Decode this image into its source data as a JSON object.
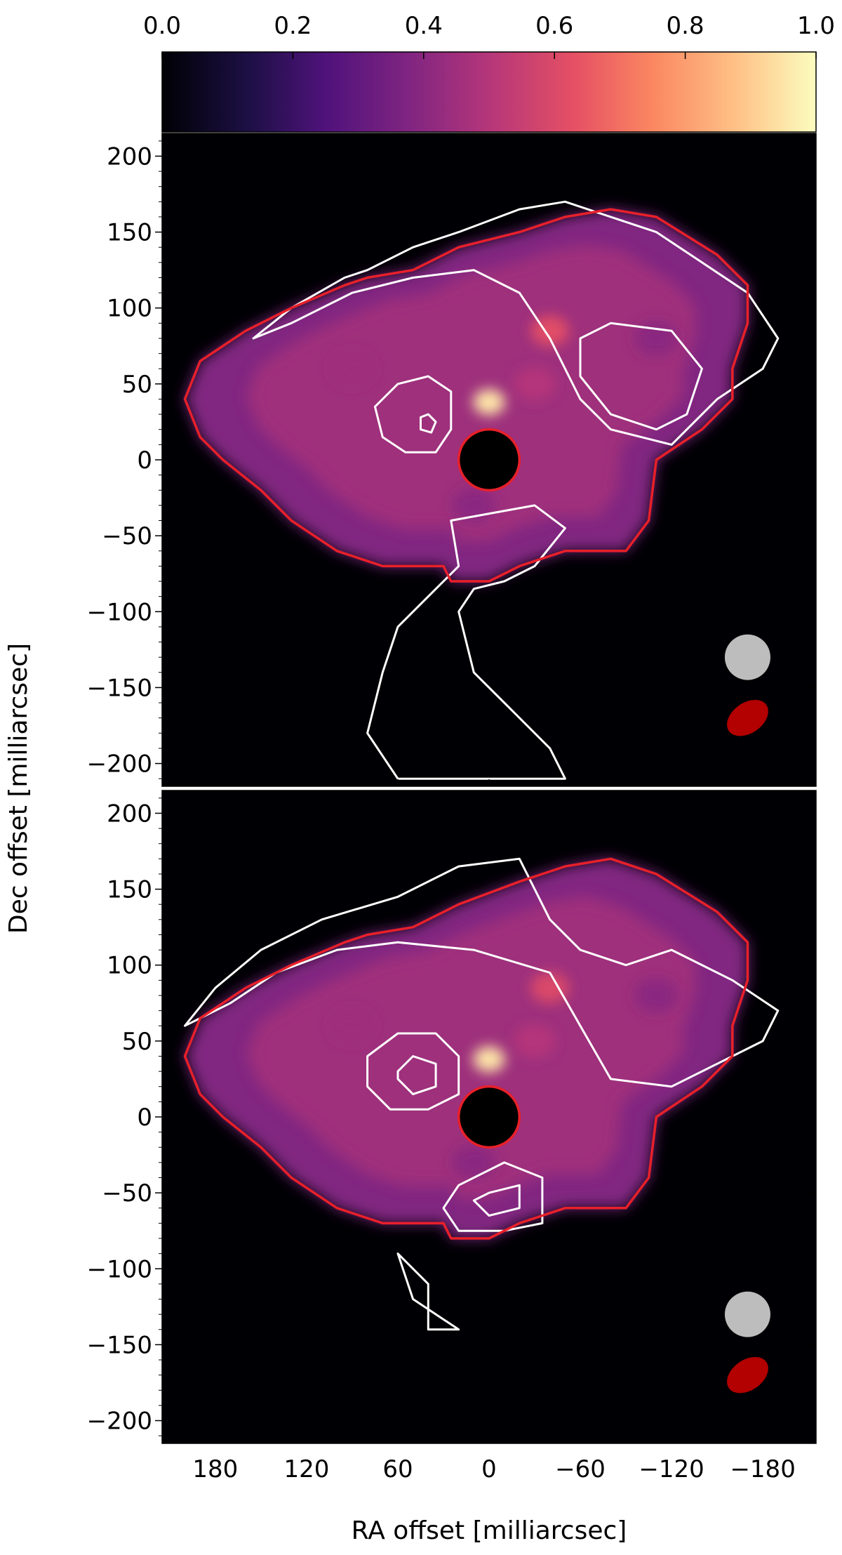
{
  "chart_data": {
    "type": "heatmap",
    "colormap": "magma",
    "colorbar": {
      "min": 0.0,
      "max": 1.0,
      "ticks": [
        "0.0",
        "0.2",
        "0.4",
        "0.6",
        "0.8",
        "1.0"
      ],
      "tick_values": [
        0.0,
        0.2,
        0.4,
        0.6,
        0.8,
        1.0
      ],
      "placement": "top"
    },
    "xlabel": "RA offset [milliarcsec]",
    "ylabel": "Dec offset [milliarcsec]",
    "xlim": [
      215,
      -215
    ],
    "ylim": [
      -215,
      215
    ],
    "xticks": [
      180,
      120,
      60,
      0,
      -60,
      -120,
      -180
    ],
    "xtick_labels": [
      "180",
      "120",
      "60",
      "0",
      "−60",
      "−120",
      "−180"
    ],
    "yticks": [
      200,
      150,
      100,
      50,
      0,
      -50,
      -100,
      -150,
      -200
    ],
    "ytick_labels": [
      "200",
      "150",
      "100",
      "50",
      "0",
      "−50",
      "−100",
      "−150",
      "−200"
    ],
    "colors": {
      "contour": "#ffffff",
      "outline": "#e8202a",
      "beam_grey": "#bdbdbd",
      "beam_red": "#b30000",
      "mask": "#000000",
      "background": "#000004"
    },
    "panels": [
      {
        "id": "top",
        "mask_center": [
          0,
          0
        ],
        "mask_radius": 20,
        "brightness_peaks": [
          {
            "x": 0,
            "y": 38,
            "level": 0.95
          },
          {
            "x": -40,
            "y": 85,
            "level": 0.62
          },
          {
            "x": -30,
            "y": 50,
            "level": 0.5
          },
          {
            "x": 90,
            "y": 60,
            "level": 0.45
          },
          {
            "x": -110,
            "y": 80,
            "level": 0.4
          },
          {
            "x": 10,
            "y": -30,
            "level": 0.4
          }
        ],
        "red_outline": [
          [
            200,
            40
          ],
          [
            190,
            65
          ],
          [
            160,
            85
          ],
          [
            130,
            100
          ],
          [
            95,
            115
          ],
          [
            80,
            120
          ],
          [
            50,
            125
          ],
          [
            20,
            140
          ],
          [
            -20,
            150
          ],
          [
            -50,
            160
          ],
          [
            -80,
            165
          ],
          [
            -110,
            160
          ],
          [
            -150,
            135
          ],
          [
            -170,
            115
          ],
          [
            -170,
            90
          ],
          [
            -160,
            60
          ],
          [
            -160,
            40
          ],
          [
            -140,
            20
          ],
          [
            -110,
            0
          ],
          [
            -105,
            -40
          ],
          [
            -90,
            -60
          ],
          [
            -50,
            -60
          ],
          [
            -20,
            -70
          ],
          [
            0,
            -80
          ],
          [
            25,
            -80
          ],
          [
            30,
            -70
          ],
          [
            70,
            -70
          ],
          [
            100,
            -60
          ],
          [
            130,
            -40
          ],
          [
            150,
            -20
          ],
          [
            175,
            0
          ],
          [
            190,
            15
          ],
          [
            200,
            40
          ]
        ],
        "white_contours": [
          [
            [
              155,
              80
            ],
            [
              130,
              100
            ],
            [
              95,
              120
            ],
            [
              80,
              125
            ],
            [
              50,
              140
            ],
            [
              20,
              150
            ],
            [
              -20,
              165
            ],
            [
              -50,
              170
            ],
            [
              -80,
              160
            ],
            [
              -110,
              150
            ],
            [
              -140,
              130
            ],
            [
              -170,
              110
            ],
            [
              -190,
              80
            ],
            [
              -180,
              60
            ],
            [
              -150,
              40
            ],
            [
              -120,
              10
            ],
            [
              -80,
              20
            ],
            [
              -60,
              40
            ],
            [
              -40,
              80
            ],
            [
              -20,
              110
            ],
            [
              10,
              125
            ],
            [
              50,
              120
            ],
            [
              90,
              110
            ],
            [
              130,
              90
            ],
            [
              155,
              80
            ]
          ],
          [
            [
              60,
              50
            ],
            [
              40,
              55
            ],
            [
              25,
              45
            ],
            [
              25,
              20
            ],
            [
              35,
              5
            ],
            [
              55,
              5
            ],
            [
              70,
              15
            ],
            [
              75,
              35
            ],
            [
              60,
              50
            ]
          ],
          [
            [
              40,
              30
            ],
            [
              35,
              25
            ],
            [
              38,
              18
            ],
            [
              45,
              20
            ],
            [
              45,
              28
            ],
            [
              40,
              30
            ]
          ],
          [
            [
              -60,
              80
            ],
            [
              -80,
              90
            ],
            [
              -120,
              85
            ],
            [
              -140,
              60
            ],
            [
              -130,
              30
            ],
            [
              -110,
              20
            ],
            [
              -80,
              30
            ],
            [
              -60,
              55
            ],
            [
              -60,
              80
            ]
          ],
          [
            [
              25,
              -40
            ],
            [
              -30,
              -30
            ],
            [
              -50,
              -45
            ],
            [
              -30,
              -70
            ],
            [
              -10,
              -80
            ],
            [
              10,
              -85
            ],
            [
              20,
              -100
            ],
            [
              10,
              -140
            ],
            [
              -10,
              -160
            ],
            [
              -40,
              -190
            ],
            [
              -50,
              -210
            ],
            [
              60,
              -210
            ],
            [
              80,
              -180
            ],
            [
              70,
              -140
            ],
            [
              60,
              -110
            ],
            [
              40,
              -90
            ],
            [
              20,
              -70
            ],
            [
              25,
              -40
            ]
          ]
        ],
        "beams": [
          {
            "x": -170,
            "y": -130,
            "rx": 15,
            "ry": 15,
            "angle": 0,
            "color": "grey"
          },
          {
            "x": -170,
            "y": -170,
            "rx": 15,
            "ry": 10,
            "angle": -35,
            "color": "red"
          }
        ]
      },
      {
        "id": "bottom",
        "mask_center": [
          0,
          0
        ],
        "mask_radius": 20,
        "brightness_peaks": [
          {
            "x": 0,
            "y": 38,
            "level": 0.95
          },
          {
            "x": -40,
            "y": 85,
            "level": 0.6
          },
          {
            "x": -30,
            "y": 50,
            "level": 0.5
          },
          {
            "x": 90,
            "y": 60,
            "level": 0.45
          },
          {
            "x": -110,
            "y": 80,
            "level": 0.4
          },
          {
            "x": 10,
            "y": -30,
            "level": 0.4
          }
        ],
        "red_outline": [
          [
            200,
            40
          ],
          [
            190,
            65
          ],
          [
            160,
            85
          ],
          [
            130,
            100
          ],
          [
            95,
            115
          ],
          [
            80,
            120
          ],
          [
            50,
            125
          ],
          [
            20,
            140
          ],
          [
            -20,
            155
          ],
          [
            -50,
            165
          ],
          [
            -80,
            170
          ],
          [
            -110,
            160
          ],
          [
            -150,
            135
          ],
          [
            -170,
            115
          ],
          [
            -170,
            90
          ],
          [
            -160,
            60
          ],
          [
            -160,
            40
          ],
          [
            -140,
            20
          ],
          [
            -110,
            0
          ],
          [
            -105,
            -40
          ],
          [
            -90,
            -60
          ],
          [
            -50,
            -60
          ],
          [
            -20,
            -70
          ],
          [
            0,
            -80
          ],
          [
            25,
            -80
          ],
          [
            30,
            -70
          ],
          [
            70,
            -70
          ],
          [
            100,
            -60
          ],
          [
            130,
            -40
          ],
          [
            150,
            -20
          ],
          [
            175,
            0
          ],
          [
            190,
            15
          ],
          [
            200,
            40
          ]
        ],
        "white_contours": [
          [
            [
              200,
              60
            ],
            [
              180,
              85
            ],
            [
              150,
              110
            ],
            [
              110,
              130
            ],
            [
              60,
              145
            ],
            [
              20,
              165
            ],
            [
              -20,
              170
            ],
            [
              -40,
              130
            ],
            [
              -60,
              110
            ],
            [
              -90,
              100
            ],
            [
              -120,
              110
            ],
            [
              -160,
              90
            ],
            [
              -190,
              70
            ],
            [
              -180,
              50
            ],
            [
              -150,
              35
            ],
            [
              -120,
              20
            ],
            [
              -80,
              25
            ],
            [
              -60,
              60
            ],
            [
              -40,
              95
            ],
            [
              10,
              110
            ],
            [
              60,
              115
            ],
            [
              100,
              110
            ],
            [
              140,
              95
            ],
            [
              170,
              75
            ],
            [
              200,
              60
            ]
          ],
          [
            [
              80,
              40
            ],
            [
              60,
              55
            ],
            [
              35,
              55
            ],
            [
              20,
              40
            ],
            [
              20,
              15
            ],
            [
              40,
              5
            ],
            [
              65,
              5
            ],
            [
              80,
              20
            ],
            [
              80,
              40
            ]
          ],
          [
            [
              60,
              30
            ],
            [
              50,
              40
            ],
            [
              35,
              35
            ],
            [
              35,
              20
            ],
            [
              50,
              15
            ],
            [
              60,
              25
            ],
            [
              60,
              30
            ]
          ],
          [
            [
              -10,
              -30
            ],
            [
              -35,
              -40
            ],
            [
              -35,
              -70
            ],
            [
              -10,
              -75
            ],
            [
              20,
              -75
            ],
            [
              30,
              -60
            ],
            [
              20,
              -45
            ],
            [
              -10,
              -30
            ]
          ],
          [
            [
              0,
              -50
            ],
            [
              -20,
              -45
            ],
            [
              -20,
              -60
            ],
            [
              0,
              -65
            ],
            [
              10,
              -55
            ],
            [
              0,
              -50
            ]
          ],
          [
            [
              60,
              -90
            ],
            [
              40,
              -110
            ],
            [
              40,
              -140
            ],
            [
              20,
              -140
            ],
            [
              50,
              -120
            ],
            [
              60,
              -90
            ]
          ]
        ],
        "beams": [
          {
            "x": -170,
            "y": -130,
            "rx": 15,
            "ry": 15,
            "angle": 0,
            "color": "grey"
          },
          {
            "x": -170,
            "y": -170,
            "rx": 15,
            "ry": 10,
            "angle": -35,
            "color": "red"
          }
        ]
      }
    ]
  }
}
